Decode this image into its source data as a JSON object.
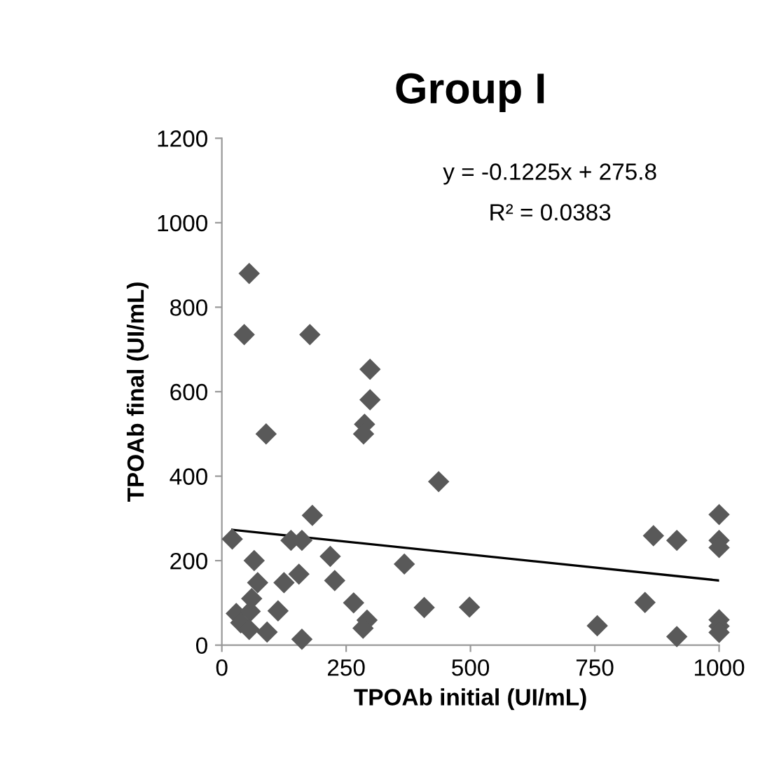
{
  "chart_data": {
    "type": "scatter",
    "title": "Group I",
    "xlabel": "TPOAb initial (UI/mL)",
    "ylabel": "TPOAb final (UI/mL)",
    "xlim": [
      0,
      1000
    ],
    "xticks": [
      0,
      250,
      500,
      750,
      1000
    ],
    "ylim": [
      0,
      1200
    ],
    "yticks": [
      0,
      200,
      400,
      600,
      800,
      1000,
      1200
    ],
    "grid": false,
    "legend": false,
    "annotations": [
      "y = -0.1225x + 275.8",
      "R² = 0.0383"
    ],
    "series": [
      {
        "marker": "diamond",
        "color": "#595959",
        "x": [
          55,
          45,
          177,
          298,
          298,
          287,
          285,
          89,
          436,
          182,
          21,
          139,
          161,
          65,
          218,
          367,
          72,
          125,
          155,
          227,
          265,
          407,
          498,
          113,
          29,
          57,
          38,
          55,
          91,
          161,
          292,
          284,
          60,
          1000,
          1000,
          1000,
          868,
          915,
          851,
          755,
          915,
          1000,
          1000,
          1000
        ],
        "values": [
          880,
          735,
          735,
          653,
          581,
          523,
          500,
          500,
          387,
          307,
          251,
          248,
          248,
          200,
          210,
          192,
          148,
          148,
          168,
          153,
          100,
          89,
          90,
          81,
          75,
          80,
          53,
          37,
          31,
          14,
          59,
          40,
          110,
          309,
          248,
          231,
          259,
          248,
          101,
          46,
          20,
          60,
          45,
          30
        ]
      },
      {
        "type": "line",
        "color": "#000000",
        "x": [
          21,
          1000
        ],
        "values": [
          273,
          153
        ]
      }
    ]
  }
}
